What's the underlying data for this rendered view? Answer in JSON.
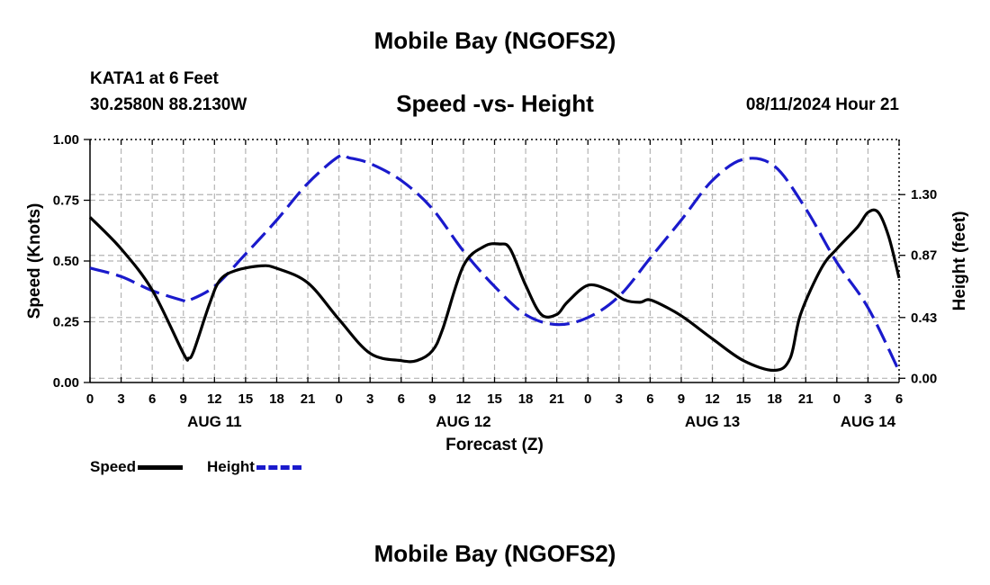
{
  "header": {
    "title": "Mobile Bay (NGOFS2)",
    "station": "KATA1 at 6 Feet",
    "coords": "30.2580N  88.2130W",
    "subtitle": "Speed -vs- Height",
    "datetime": "08/11/2024 Hour 21"
  },
  "footer": {
    "title": "Mobile Bay (NGOFS2)"
  },
  "legend": {
    "speed": "Speed",
    "height": "Height"
  },
  "colors": {
    "speed": "#000000",
    "height": "#1a1acc",
    "grid": "#b4b4b4"
  },
  "chart_data": {
    "type": "line",
    "xlabel": "Forecast (Z)",
    "ylabel_left": "Speed (Knots)",
    "ylabel_right": "Height (feet)",
    "x_range": [
      0,
      78
    ],
    "ylim_left": [
      0,
      1
    ],
    "ylim_right": [
      -0.03,
      1.69
    ],
    "yticks_left": [
      0.0,
      0.25,
      0.5,
      0.75,
      1.0
    ],
    "yticks_left_labels": [
      "0.00",
      "0.25",
      "0.50",
      "0.75",
      "1.00"
    ],
    "yticks_right": [
      0.0,
      0.43,
      0.87,
      1.3
    ],
    "yticks_right_labels": [
      "0.00",
      "0.43",
      "0.87",
      "1.30"
    ],
    "xticks": [
      0,
      3,
      6,
      9,
      12,
      15,
      18,
      21,
      24,
      27,
      30,
      33,
      36,
      39,
      42,
      45,
      48,
      51,
      54,
      57,
      60,
      63,
      66,
      69,
      72,
      75,
      78
    ],
    "xtick_labels": [
      "0",
      "3",
      "6",
      "9",
      "12",
      "15",
      "18",
      "21",
      "0",
      "3",
      "6",
      "9",
      "12",
      "15",
      "18",
      "21",
      "0",
      "3",
      "6",
      "9",
      "12",
      "15",
      "18",
      "21",
      "0",
      "3",
      "6"
    ],
    "date_labels": [
      {
        "x": 12,
        "label": "AUG 11"
      },
      {
        "x": 36,
        "label": "AUG 12"
      },
      {
        "x": 60,
        "label": "AUG 13"
      },
      {
        "x": 75,
        "label": "AUG 14"
      }
    ],
    "grid": true,
    "series": [
      {
        "name": "Speed",
        "axis": "left",
        "style": "solid",
        "x": [
          0,
          3,
          6,
          9,
          9.5,
          10,
          11.5,
          12.5,
          14,
          16.5,
          18,
          21,
          24,
          27,
          30,
          31.5,
          33,
          34,
          36,
          38,
          39.5,
          40.5,
          42,
          43.5,
          45,
          46,
          48,
          50,
          51.5,
          53,
          54,
          56,
          57.5,
          60,
          63,
          66,
          67.5,
          68.5,
          70.5,
          72,
          74,
          75,
          76,
          77,
          78
        ],
        "values": [
          0.68,
          0.55,
          0.38,
          0.12,
          0.1,
          0.13,
          0.32,
          0.42,
          0.46,
          0.48,
          0.47,
          0.41,
          0.26,
          0.12,
          0.09,
          0.09,
          0.13,
          0.22,
          0.48,
          0.56,
          0.57,
          0.55,
          0.4,
          0.28,
          0.28,
          0.33,
          0.4,
          0.38,
          0.34,
          0.33,
          0.34,
          0.3,
          0.26,
          0.18,
          0.09,
          0.05,
          0.1,
          0.28,
          0.47,
          0.55,
          0.64,
          0.7,
          0.7,
          0.6,
          0.43
        ]
      },
      {
        "name": "Height",
        "axis": "right",
        "style": "dashed",
        "x": [
          0,
          3,
          6,
          9,
          9.5,
          12,
          15,
          18,
          21,
          24,
          25,
          27,
          30,
          33,
          36,
          39,
          42,
          45,
          48,
          51,
          54,
          57,
          60,
          63,
          66,
          69,
          72,
          75,
          78
        ],
        "values": [
          0.78,
          0.72,
          0.62,
          0.55,
          0.55,
          0.65,
          0.88,
          1.12,
          1.38,
          1.57,
          1.56,
          1.52,
          1.4,
          1.2,
          0.9,
          0.65,
          0.45,
          0.38,
          0.43,
          0.58,
          0.85,
          1.12,
          1.4,
          1.55,
          1.5,
          1.2,
          0.82,
          0.5,
          0.05
        ]
      }
    ]
  }
}
